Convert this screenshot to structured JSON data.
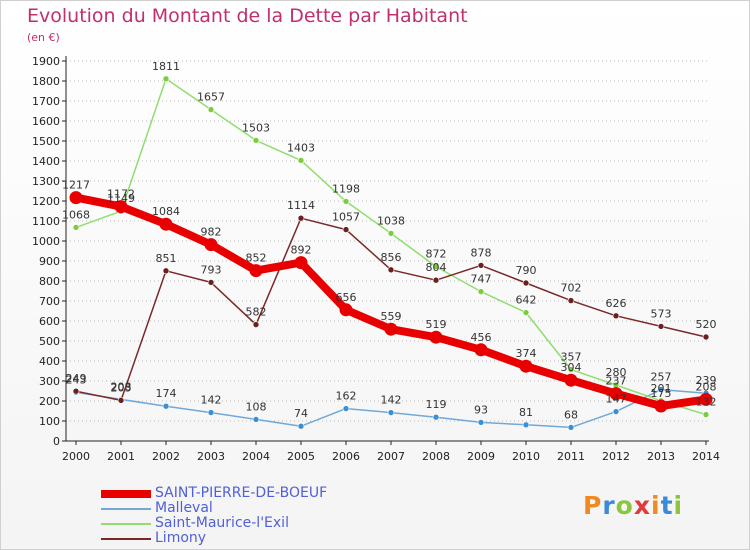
{
  "header": {
    "title": "Evolution du Montant de la Dette par Habitant",
    "subtitle": "(en €)"
  },
  "colors": {
    "title": "#c0306e",
    "axis": "#222222",
    "grid": "#bbbbbb",
    "legend_text": "#5060d8"
  },
  "logo": {
    "text": "Proxiti",
    "letters": [
      {
        "char": "P",
        "color": "#f08a20"
      },
      {
        "char": "r",
        "color": "#3a8ad8"
      },
      {
        "char": "o",
        "color": "#8cc63f"
      },
      {
        "char": "x",
        "color": "#e23a3a"
      },
      {
        "char": "i",
        "color": "#f08a20"
      },
      {
        "char": "t",
        "color": "#3a8ad8"
      },
      {
        "char": "i",
        "color": "#8cc63f"
      }
    ]
  },
  "chart_data": {
    "type": "line",
    "title": "Evolution du Montant de la Dette par Habitant",
    "subtitle": "(en €)",
    "x": [
      "2000",
      "2001",
      "2002",
      "2003",
      "2004",
      "2005",
      "2006",
      "2007",
      "2008",
      "2009",
      "2010",
      "2011",
      "2012",
      "2013",
      "2014"
    ],
    "ylim": [
      0,
      1900
    ],
    "yticks": [
      0,
      100,
      200,
      300,
      400,
      500,
      600,
      700,
      800,
      900,
      1000,
      1100,
      1200,
      1300,
      1400,
      1500,
      1600,
      1700,
      1800,
      1900
    ],
    "grid": true,
    "legend_position": "bottom-left",
    "series": [
      {
        "name": "SAINT-PIERRE-DE-BOEUF",
        "color": "#e80000",
        "marker": "#e80000",
        "bold": true,
        "values": [
          1217,
          1172,
          1084,
          982,
          852,
          892,
          656,
          559,
          519,
          456,
          374,
          304,
          237,
          175,
          208
        ]
      },
      {
        "name": "Malleval",
        "color": "#70a8d8",
        "marker": "#3d8fd0",
        "bold": false,
        "values": [
          243,
          208,
          174,
          142,
          108,
          74,
          162,
          142,
          119,
          93,
          81,
          68,
          147,
          257,
          239
        ]
      },
      {
        "name": "Saint-Maurice-l'Exil",
        "color": "#90dd70",
        "marker": "#7ccc40",
        "bold": false,
        "values": [
          1068,
          1149,
          1811,
          1657,
          1503,
          1403,
          1198,
          1038,
          872,
          747,
          642,
          357,
          280,
          201,
          132
        ]
      },
      {
        "name": "Limony",
        "color": "#7a2828",
        "marker": "#6b1f1f",
        "bold": false,
        "values": [
          249,
          203,
          851,
          793,
          582,
          1114,
          1057,
          856,
          804,
          878,
          790,
          702,
          626,
          573,
          520
        ]
      }
    ]
  }
}
